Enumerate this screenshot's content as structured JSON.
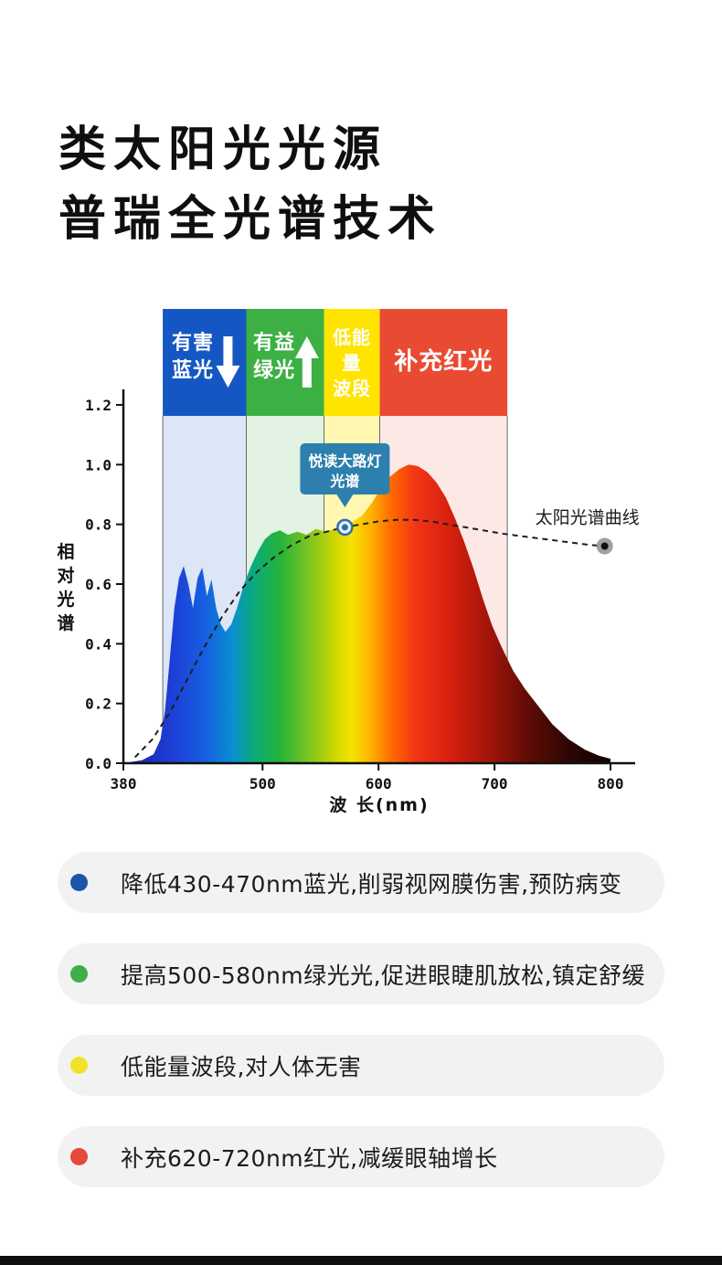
{
  "header": {
    "title_line1": "类太阳光光源",
    "title_line2": "普瑞全光谱技术"
  },
  "chart_data": {
    "type": "area",
    "title": "",
    "xlabel": "波 长(nm)",
    "ylabel": "相对光谱",
    "xlim": [
      380,
      800
    ],
    "ylim": [
      0,
      1.2
    ],
    "x_ticks": [
      380,
      500,
      600,
      700,
      800
    ],
    "y_ticks": [
      0.0,
      0.2,
      0.4,
      0.6,
      0.8,
      1.0,
      1.2
    ],
    "grid": false,
    "bands": [
      {
        "name": "harmful-blue",
        "label_lines": [
          "有害",
          "蓝光"
        ],
        "arrow": "down",
        "range_nm": [
          414,
          486
        ],
        "color": "#1557c2",
        "tint_opacity": 0.15
      },
      {
        "name": "beneficial-green",
        "label_lines": [
          "有益",
          "绿光"
        ],
        "arrow": "up",
        "range_nm": [
          486,
          553
        ],
        "color": "#3cb043",
        "tint_opacity": 0.15
      },
      {
        "name": "low-energy",
        "label_lines": [
          "低能",
          "量",
          "波段"
        ],
        "arrow": null,
        "range_nm": [
          553,
          601
        ],
        "color": "#ffe400",
        "tint_opacity": 0.3
      },
      {
        "name": "supplement-red",
        "label_lines": [
          "补充红光"
        ],
        "arrow": null,
        "range_nm": [
          601,
          711
        ],
        "color": "#e94b32",
        "tint_opacity": 0.13
      }
    ],
    "series": [
      {
        "name": "悦读大路灯光谱",
        "type": "area-spectrum",
        "points": [
          [
            380,
            0
          ],
          [
            396,
            0.01
          ],
          [
            406,
            0.03
          ],
          [
            412,
            0.08
          ],
          [
            416,
            0.18
          ],
          [
            420,
            0.35
          ],
          [
            424,
            0.52
          ],
          [
            428,
            0.62
          ],
          [
            432,
            0.66
          ],
          [
            436,
            0.6
          ],
          [
            440,
            0.52
          ],
          [
            444,
            0.62
          ],
          [
            448,
            0.655
          ],
          [
            452,
            0.56
          ],
          [
            456,
            0.615
          ],
          [
            460,
            0.52
          ],
          [
            464,
            0.465
          ],
          [
            468,
            0.44
          ],
          [
            473,
            0.465
          ],
          [
            478,
            0.52
          ],
          [
            484,
            0.6
          ],
          [
            490,
            0.66
          ],
          [
            496,
            0.71
          ],
          [
            502,
            0.75
          ],
          [
            508,
            0.77
          ],
          [
            515,
            0.78
          ],
          [
            522,
            0.765
          ],
          [
            530,
            0.775
          ],
          [
            538,
            0.765
          ],
          [
            546,
            0.785
          ],
          [
            554,
            0.775
          ],
          [
            562,
            0.785
          ],
          [
            570,
            0.79
          ],
          [
            578,
            0.81
          ],
          [
            586,
            0.83
          ],
          [
            594,
            0.87
          ],
          [
            602,
            0.92
          ],
          [
            610,
            0.96
          ],
          [
            618,
            0.985
          ],
          [
            626,
            1.0
          ],
          [
            634,
            0.995
          ],
          [
            642,
            0.975
          ],
          [
            650,
            0.94
          ],
          [
            658,
            0.89
          ],
          [
            666,
            0.82
          ],
          [
            674,
            0.74
          ],
          [
            682,
            0.65
          ],
          [
            690,
            0.55
          ],
          [
            698,
            0.46
          ],
          [
            706,
            0.39
          ],
          [
            716,
            0.31
          ],
          [
            726,
            0.25
          ],
          [
            738,
            0.19
          ],
          [
            750,
            0.13
          ],
          [
            764,
            0.08
          ],
          [
            778,
            0.045
          ],
          [
            790,
            0.025
          ],
          [
            800,
            0.015
          ]
        ]
      },
      {
        "name": "太阳光谱曲线",
        "type": "dashed-line",
        "points": [
          [
            390,
            0.02
          ],
          [
            405,
            0.08
          ],
          [
            420,
            0.17
          ],
          [
            435,
            0.28
          ],
          [
            450,
            0.39
          ],
          [
            465,
            0.49
          ],
          [
            480,
            0.575
          ],
          [
            495,
            0.64
          ],
          [
            510,
            0.69
          ],
          [
            525,
            0.73
          ],
          [
            540,
            0.76
          ],
          [
            555,
            0.775
          ],
          [
            570,
            0.79
          ],
          [
            585,
            0.8
          ],
          [
            600,
            0.81
          ],
          [
            615,
            0.815
          ],
          [
            630,
            0.815
          ],
          [
            645,
            0.81
          ],
          [
            660,
            0.8
          ],
          [
            675,
            0.79
          ],
          [
            690,
            0.78
          ],
          [
            705,
            0.77
          ],
          [
            720,
            0.762
          ],
          [
            740,
            0.752
          ],
          [
            760,
            0.742
          ],
          [
            780,
            0.732
          ],
          [
            795,
            0.727
          ]
        ]
      }
    ],
    "annotations": {
      "lamp_callout": {
        "text_lines": [
          "悦读大路灯",
          "光谱"
        ],
        "at_nm": 571,
        "at_value": 0.79,
        "color": "#2d7fae"
      },
      "sun_label": {
        "text": "太阳光谱曲线",
        "at_nm": 795,
        "at_value": 0.727
      }
    },
    "spectrum_gradient": [
      [
        380,
        "#1b1f9e"
      ],
      [
        422,
        "#1e3ed6"
      ],
      [
        451,
        "#1560e0"
      ],
      [
        474,
        "#0a8fd0"
      ],
      [
        493,
        "#0aab7a"
      ],
      [
        514,
        "#22b23c"
      ],
      [
        540,
        "#7cc51e"
      ],
      [
        565,
        "#d6d800"
      ],
      [
        577,
        "#f6e300"
      ],
      [
        594,
        "#ffae00"
      ],
      [
        611,
        "#ff6a00"
      ],
      [
        632,
        "#f23515"
      ],
      [
        661,
        "#d8200e"
      ],
      [
        695,
        "#a3150a"
      ],
      [
        729,
        "#5f0c05"
      ],
      [
        766,
        "#2a0603"
      ],
      [
        800,
        "#120302"
      ]
    ]
  },
  "bullets": [
    {
      "dot_color": "#1b56a8",
      "text": "降低430-470nm蓝光,削弱视网膜伤害,预防病变"
    },
    {
      "dot_color": "#3fae49",
      "text": "提高500-580nm绿光光,促进眼睫肌放松,镇定舒缓"
    },
    {
      "dot_color": "#f2e32a",
      "text": "低能量波段,对人体无害"
    },
    {
      "dot_color": "#e6493a",
      "text": "补充620-720nm红光,减缓眼轴增长"
    }
  ]
}
